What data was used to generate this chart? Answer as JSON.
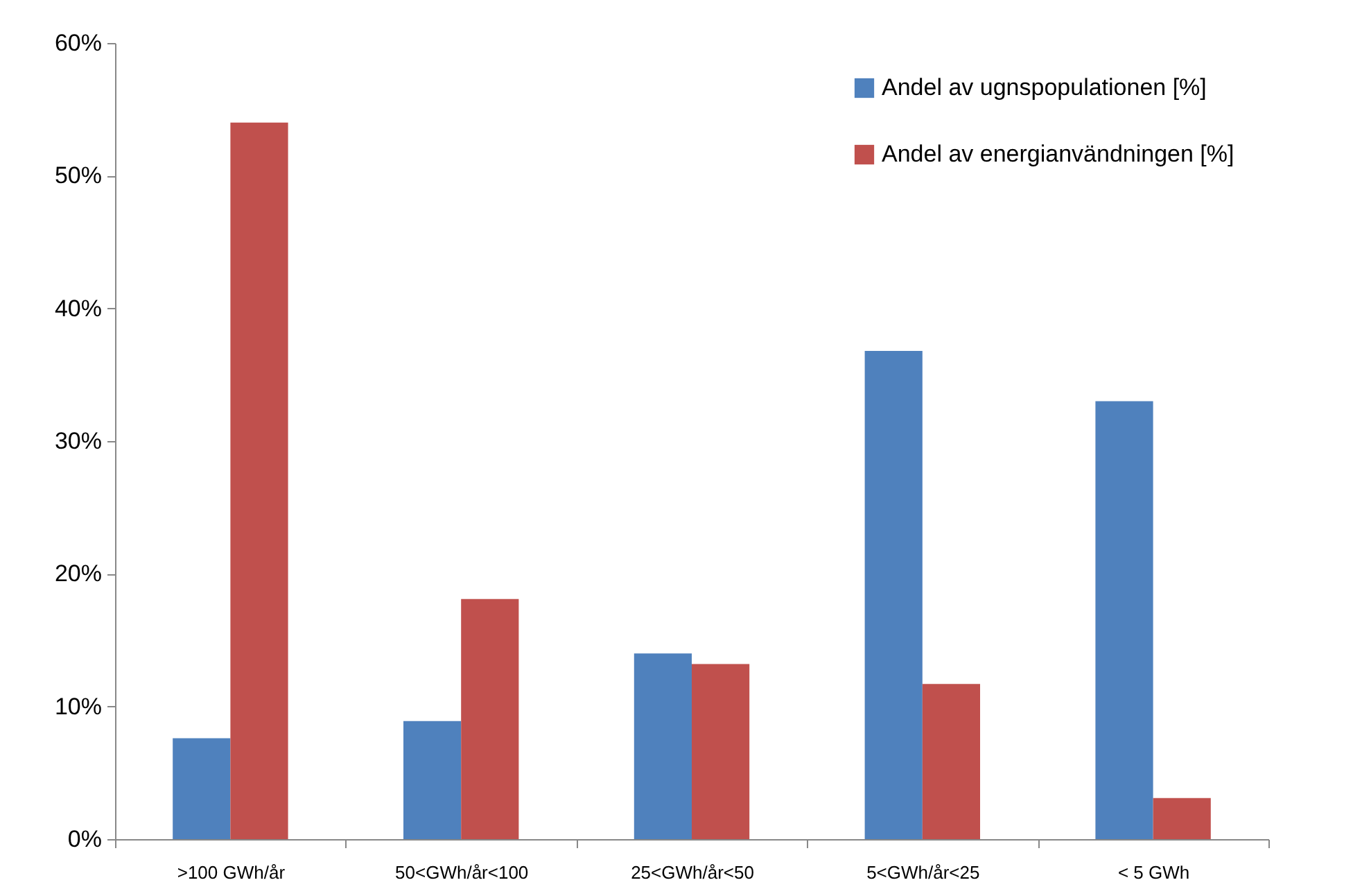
{
  "chart_data": {
    "type": "bar",
    "categories": [
      ">100 GWh/år",
      "50<GWh/år<100",
      "25<GWh/år<50",
      "5<GWh/år<25",
      "< 5 GWh"
    ],
    "series": [
      {
        "name": "Andel av ugnspopulationen [%]",
        "color": "#4f81bd",
        "values": [
          7.6,
          8.9,
          14.0,
          36.8,
          33.0
        ]
      },
      {
        "name": "Andel av energianvändningen [%]",
        "color": "#c0504d",
        "values": [
          54.0,
          18.1,
          13.2,
          11.7,
          3.1
        ]
      }
    ],
    "ylim": [
      0,
      60
    ],
    "yticks": [
      {
        "value": 0,
        "label": "0%"
      },
      {
        "value": 10,
        "label": "10%"
      },
      {
        "value": 20,
        "label": "20%"
      },
      {
        "value": 30,
        "label": "30%"
      },
      {
        "value": 40,
        "label": "40%"
      },
      {
        "value": 50,
        "label": "50%"
      },
      {
        "value": 60,
        "label": "60%"
      }
    ],
    "grid": false,
    "legend": "top right"
  }
}
